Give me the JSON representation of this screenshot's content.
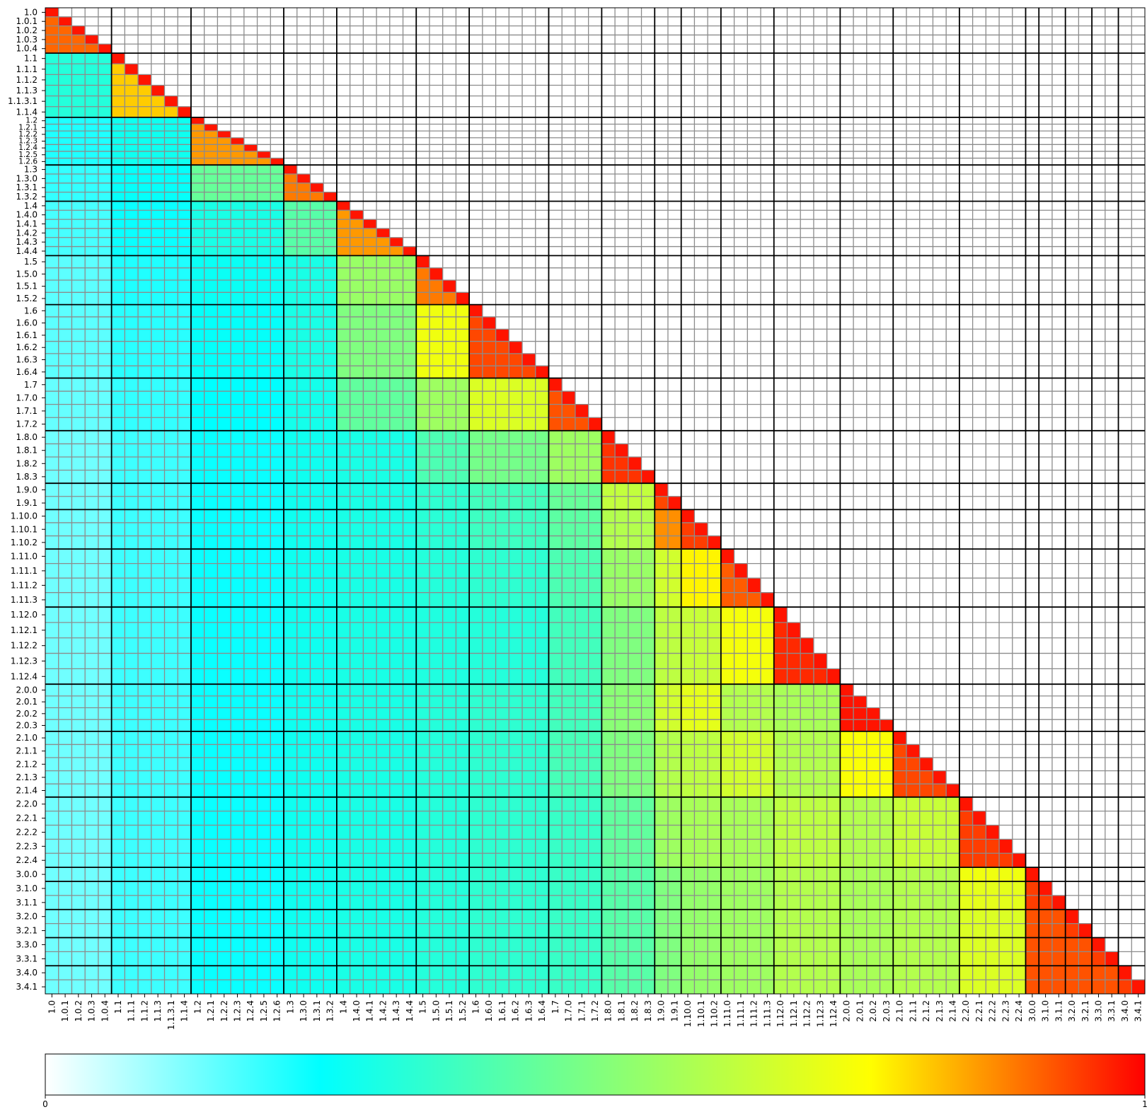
{
  "chart_data": {
    "type": "heatmap",
    "title": "",
    "xlabel": "",
    "ylabel": "",
    "layout": "lower-triangular matrix (diagonal included), upper triangle blank",
    "grid": true,
    "group_separators": "thick black lines between version groups",
    "labels": [
      "1.0",
      "1.0.1",
      "1.0.2",
      "1.0.3",
      "1.0.4",
      "1.1",
      "1.1.1",
      "1.1.2",
      "1.1.3",
      "1.1.3.1",
      "1.1.4",
      "1.2",
      "1.2.1",
      "1.2.2",
      "1.2.3",
      "1.2.4",
      "1.2.5",
      "1.2.6",
      "1.3",
      "1.3.0",
      "1.3.1",
      "1.3.2",
      "1.4",
      "1.4.0",
      "1.4.1",
      "1.4.2",
      "1.4.3",
      "1.4.4",
      "1.5",
      "1.5.0",
      "1.5.1",
      "1.5.2",
      "1.6",
      "1.6.0",
      "1.6.1",
      "1.6.2",
      "1.6.3",
      "1.6.4",
      "1.7",
      "1.7.0",
      "1.7.1",
      "1.7.2",
      "1.8.0",
      "1.8.1",
      "1.8.2",
      "1.8.3",
      "1.9.0",
      "1.9.1",
      "1.10.0",
      "1.10.1",
      "1.10.2",
      "1.11.0",
      "1.11.1",
      "1.11.2",
      "1.11.3",
      "1.12.0",
      "1.12.1",
      "1.12.2",
      "1.12.3",
      "1.12.4",
      "2.0.0",
      "2.0.1",
      "2.0.2",
      "2.0.3",
      "2.1.0",
      "2.1.1",
      "2.1.2",
      "2.1.3",
      "2.1.4",
      "2.2.0",
      "2.2.1",
      "2.2.2",
      "2.2.3",
      "2.2.4",
      "3.0.0",
      "3.1.0",
      "3.1.1",
      "3.2.0",
      "3.2.1",
      "3.3.0",
      "3.3.1",
      "3.4.0",
      "3.4.1"
    ],
    "groups": [
      {
        "name": "1.0",
        "labels": [
          "1.0",
          "1.0.1",
          "1.0.2",
          "1.0.3",
          "1.0.4"
        ]
      },
      {
        "name": "1.1",
        "labels": [
          "1.1",
          "1.1.1",
          "1.1.2",
          "1.1.3",
          "1.1.3.1",
          "1.1.4"
        ]
      },
      {
        "name": "1.2",
        "labels": [
          "1.2",
          "1.2.1",
          "1.2.2",
          "1.2.3",
          "1.2.4",
          "1.2.5",
          "1.2.6"
        ]
      },
      {
        "name": "1.3",
        "labels": [
          "1.3",
          "1.3.0",
          "1.3.1",
          "1.3.2"
        ]
      },
      {
        "name": "1.4",
        "labels": [
          "1.4",
          "1.4.0",
          "1.4.1",
          "1.4.2",
          "1.4.3",
          "1.4.4"
        ]
      },
      {
        "name": "1.5",
        "labels": [
          "1.5",
          "1.5.0",
          "1.5.1",
          "1.5.2"
        ]
      },
      {
        "name": "1.6",
        "labels": [
          "1.6",
          "1.6.0",
          "1.6.1",
          "1.6.2",
          "1.6.3",
          "1.6.4"
        ]
      },
      {
        "name": "1.7",
        "labels": [
          "1.7",
          "1.7.0",
          "1.7.1",
          "1.7.2"
        ]
      },
      {
        "name": "1.8",
        "labels": [
          "1.8.0",
          "1.8.1",
          "1.8.2",
          "1.8.3"
        ]
      },
      {
        "name": "1.9",
        "labels": [
          "1.9.0",
          "1.9.1"
        ]
      },
      {
        "name": "1.10",
        "labels": [
          "1.10.0",
          "1.10.1",
          "1.10.2"
        ]
      },
      {
        "name": "1.11",
        "labels": [
          "1.11.0",
          "1.11.1",
          "1.11.2",
          "1.11.3"
        ]
      },
      {
        "name": "1.12",
        "labels": [
          "1.12.0",
          "1.12.1",
          "1.12.2",
          "1.12.3",
          "1.12.4"
        ]
      },
      {
        "name": "2.0",
        "labels": [
          "2.0.0",
          "2.0.1",
          "2.0.2",
          "2.0.3"
        ]
      },
      {
        "name": "2.1",
        "labels": [
          "2.1.0",
          "2.1.1",
          "2.1.2",
          "2.1.3",
          "2.1.4"
        ]
      },
      {
        "name": "2.2",
        "labels": [
          "2.2.0",
          "2.2.1",
          "2.2.2",
          "2.2.3",
          "2.2.4"
        ]
      },
      {
        "name": "3.0",
        "labels": [
          "3.0.0"
        ]
      },
      {
        "name": "3.1",
        "labels": [
          "3.1.0",
          "3.1.1"
        ]
      },
      {
        "name": "3.2",
        "labels": [
          "3.2.0",
          "3.2.1"
        ]
      },
      {
        "name": "3.3",
        "labels": [
          "3.3.0",
          "3.3.1"
        ]
      },
      {
        "name": "3.4",
        "labels": [
          "3.4.0",
          "3.4.1"
        ]
      }
    ],
    "group_values": [
      [
        0.9
      ],
      [
        0.32,
        0.8
      ],
      [
        0.22,
        0.28,
        0.85
      ],
      [
        0.2,
        0.26,
        0.45,
        0.88
      ],
      [
        0.18,
        0.24,
        0.3,
        0.42,
        0.85
      ],
      [
        0.16,
        0.22,
        0.27,
        0.3,
        0.55,
        0.88
      ],
      [
        0.16,
        0.21,
        0.26,
        0.3,
        0.5,
        0.72,
        0.93
      ],
      [
        0.15,
        0.2,
        0.25,
        0.29,
        0.44,
        0.56,
        0.68,
        0.92
      ],
      [
        0.14,
        0.19,
        0.24,
        0.28,
        0.3,
        0.4,
        0.48,
        0.56,
        0.95
      ],
      [
        0.14,
        0.19,
        0.24,
        0.28,
        0.3,
        0.34,
        0.38,
        0.45,
        0.63,
        0.93
      ],
      [
        0.14,
        0.19,
        0.24,
        0.28,
        0.3,
        0.33,
        0.37,
        0.43,
        0.6,
        0.86,
        0.94
      ],
      [
        0.14,
        0.19,
        0.24,
        0.28,
        0.3,
        0.32,
        0.34,
        0.4,
        0.55,
        0.66,
        0.76,
        0.91
      ],
      [
        0.14,
        0.19,
        0.24,
        0.28,
        0.3,
        0.31,
        0.32,
        0.38,
        0.5,
        0.62,
        0.64,
        0.73,
        0.96
      ],
      [
        0.14,
        0.19,
        0.24,
        0.28,
        0.3,
        0.32,
        0.34,
        0.38,
        0.52,
        0.66,
        0.7,
        0.6,
        0.58,
        0.98
      ],
      [
        0.14,
        0.19,
        0.24,
        0.28,
        0.3,
        0.32,
        0.34,
        0.39,
        0.5,
        0.6,
        0.62,
        0.66,
        0.6,
        0.74,
        0.93
      ],
      [
        0.14,
        0.19,
        0.24,
        0.28,
        0.3,
        0.32,
        0.34,
        0.36,
        0.44,
        0.56,
        0.58,
        0.58,
        0.62,
        0.6,
        0.64,
        0.94
      ],
      [
        0.14,
        0.19,
        0.24,
        0.28,
        0.3,
        0.32,
        0.34,
        0.36,
        0.42,
        0.5,
        0.54,
        0.56,
        0.6,
        0.58,
        0.6,
        0.72,
        0.92
      ],
      [
        0.14,
        0.19,
        0.24,
        0.28,
        0.3,
        0.32,
        0.34,
        0.36,
        0.42,
        0.5,
        0.54,
        0.56,
        0.6,
        0.58,
        0.6,
        0.7,
        0.94,
        0.94
      ],
      [
        0.14,
        0.19,
        0.24,
        0.28,
        0.3,
        0.32,
        0.34,
        0.36,
        0.42,
        0.5,
        0.54,
        0.56,
        0.6,
        0.58,
        0.6,
        0.68,
        0.92,
        0.92,
        0.94
      ],
      [
        0.14,
        0.19,
        0.24,
        0.28,
        0.3,
        0.32,
        0.34,
        0.36,
        0.42,
        0.5,
        0.54,
        0.56,
        0.6,
        0.58,
        0.6,
        0.68,
        0.92,
        0.92,
        0.92,
        0.94
      ],
      [
        0.14,
        0.19,
        0.24,
        0.28,
        0.3,
        0.32,
        0.34,
        0.36,
        0.42,
        0.5,
        0.54,
        0.56,
        0.6,
        0.58,
        0.6,
        0.68,
        0.92,
        0.92,
        0.92,
        0.92,
        0.94
      ]
    ],
    "colorbar": {
      "min": 0,
      "max": 1,
      "tick_labels": [
        "0",
        "1"
      ],
      "colors": [
        "#ffffff",
        "#00ffff",
        "#ffff00",
        "#ff0000"
      ],
      "color_stops": [
        0,
        0.25,
        0.75,
        1
      ]
    }
  }
}
